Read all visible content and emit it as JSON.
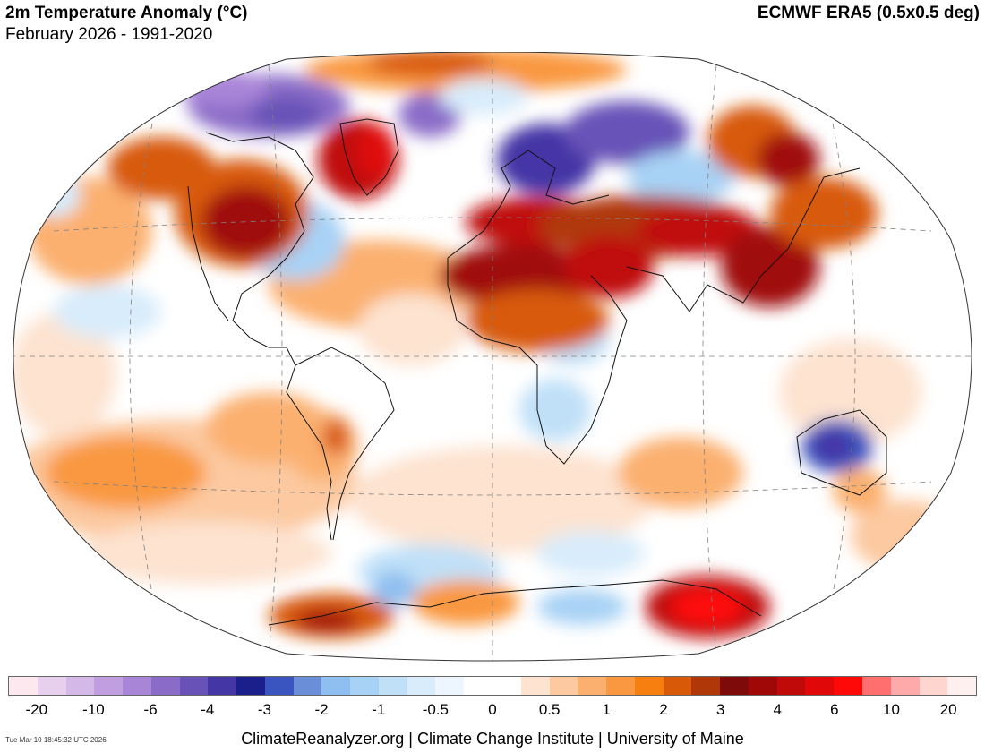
{
  "header": {
    "title": "2m Temperature Anomaly (°C)",
    "subtitle": "February 2026 - 1991-2020",
    "source": "ECMWF ERA5 (0.5x0.5 deg)"
  },
  "colorbar": {
    "colors": [
      "#fde8f0",
      "#e6d0ee",
      "#d4b8e8",
      "#c09ee0",
      "#a985d8",
      "#8a6cc8",
      "#6852b8",
      "#4536a6",
      "#1a1f8c",
      "#3a55c0",
      "#6a8fd8",
      "#8fbff0",
      "#a8d2f5",
      "#c0e0f8",
      "#d8ecfb",
      "#edf6fe",
      "#ffffff",
      "#ffffff",
      "#fde3d0",
      "#fcc9a0",
      "#fbb070",
      "#f99840",
      "#f77f10",
      "#d85a08",
      "#b03808",
      "#7e0a0a",
      "#a00808",
      "#c00a0a",
      "#e00808",
      "#ff0808",
      "#ff6f6f",
      "#ffaaaa",
      "#ffd5d0",
      "#fff0f0"
    ],
    "tick_labels": [
      "-20",
      "-10",
      "-6",
      "-4",
      "-3",
      "-2",
      "-1",
      "-0.5",
      "0",
      "0.5",
      "1",
      "2",
      "3",
      "4",
      "6",
      "10",
      "20"
    ]
  },
  "footer": {
    "credit": "ClimateReanalyzer.org | Climate Change Institute | University of Maine",
    "timestamp": "Tue Mar 10 18:45:32 UTC 2026"
  },
  "map_regions": [
    {
      "name": "arctic-canada-cold",
      "anomaly": "cold",
      "color": "#7b6ad0"
    },
    {
      "name": "greenland-warm",
      "anomaly": "warm",
      "color": "#c00a0a"
    },
    {
      "name": "us-warm",
      "anomaly": "warm",
      "color": "#b01010"
    },
    {
      "name": "scandinavia-russia-cold",
      "anomaly": "cold",
      "color": "#5a4cb8"
    },
    {
      "name": "north-africa-asia-warm",
      "anomaly": "warm",
      "color": "#c00a0a"
    },
    {
      "name": "australia-cold",
      "anomaly": "cold",
      "color": "#5566c8"
    },
    {
      "name": "antarctica-warm",
      "anomaly": "warm",
      "color": "#e00808"
    }
  ]
}
